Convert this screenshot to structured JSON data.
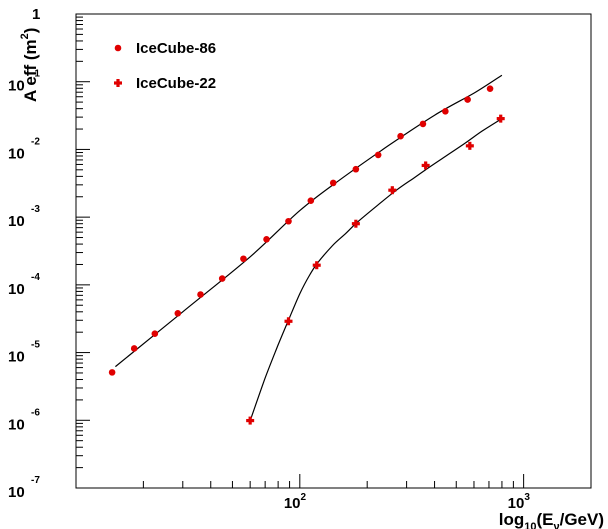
{
  "chart_data": {
    "type": "scatter",
    "title": "",
    "xlabel": "log10(Eν/GeV)",
    "xlabel_parts": {
      "prefix": "log",
      "sub1": "10",
      "mid": "(E",
      "sub2": "ν",
      "suffix": "/GeV)"
    },
    "ylabel": "A eff (m2)",
    "ylabel_parts": {
      "main": "A eff (m",
      "sup": "2",
      "close": ")"
    },
    "x_scale": "log",
    "y_scale": "log",
    "xlim": [
      10,
      2000
    ],
    "ylim": [
      1e-07,
      1
    ],
    "grid": false,
    "legend_position": "top-left",
    "x_ticks": [
      {
        "value": 100,
        "base": "10",
        "exp": "2"
      },
      {
        "value": 1000,
        "base": "10",
        "exp": "3"
      }
    ],
    "y_ticks": [
      {
        "value": 1,
        "base": "1",
        "exp": ""
      },
      {
        "value": 0.1,
        "base": "10",
        "exp": "-1"
      },
      {
        "value": 0.01,
        "base": "10",
        "exp": "-2"
      },
      {
        "value": 0.001,
        "base": "10",
        "exp": "-3"
      },
      {
        "value": 0.0001,
        "base": "10",
        "exp": "-4"
      },
      {
        "value": 1e-05,
        "base": "10",
        "exp": "-5"
      },
      {
        "value": 1e-06,
        "base": "10",
        "exp": "-6"
      },
      {
        "value": 1e-07,
        "base": "10",
        "exp": "-7"
      }
    ],
    "series": [
      {
        "name": "IceCube-86",
        "marker": "circle",
        "color": "#e00000",
        "points": [
          [
            14.5,
            5.1e-06
          ],
          [
            18.2,
            1.15e-05
          ],
          [
            22.5,
            1.9e-05
          ],
          [
            28.5,
            3.8e-05
          ],
          [
            36,
            7.2e-05
          ],
          [
            45,
            0.000124
          ],
          [
            56,
            0.000243
          ],
          [
            71,
            0.00047
          ],
          [
            89,
            0.00087
          ],
          [
            112,
            0.00175
          ],
          [
            141,
            0.0032
          ],
          [
            178,
            0.0051
          ],
          [
            224,
            0.0083
          ],
          [
            282,
            0.0157
          ],
          [
            355,
            0.0238
          ],
          [
            447,
            0.0365
          ],
          [
            562,
            0.0545
          ],
          [
            708,
            0.079
          ]
        ],
        "fit": [
          [
            15,
            6.2e-06
          ],
          [
            30,
            4e-05
          ],
          [
            60,
            0.00026
          ],
          [
            100,
            0.00125
          ],
          [
            150,
            0.0035
          ],
          [
            250,
            0.0115
          ],
          [
            400,
            0.032
          ],
          [
            600,
            0.068
          ],
          [
            800,
            0.125
          ]
        ]
      },
      {
        "name": "IceCube-22",
        "marker": "cross",
        "color": "#e00000",
        "points": [
          [
            60,
            9.9e-07
          ],
          [
            89,
            2.9e-05
          ],
          [
            119,
            0.000195
          ],
          [
            178,
            0.0008
          ],
          [
            259,
            0.0025
          ],
          [
            365,
            0.0058
          ],
          [
            575,
            0.0113
          ],
          [
            790,
            0.0285
          ]
        ],
        "fit": [
          [
            60,
            9.9e-07
          ],
          [
            70,
            4.2e-06
          ],
          [
            80,
            1.3e-05
          ],
          [
            90,
            3.3e-05
          ],
          [
            100,
            7.4e-05
          ],
          [
            110,
            0.000135
          ],
          [
            120,
            0.00021
          ],
          [
            140,
            0.00038
          ],
          [
            160,
            0.00057
          ],
          [
            180,
            0.00083
          ],
          [
            220,
            0.00145
          ],
          [
            270,
            0.0025
          ],
          [
            320,
            0.0037
          ],
          [
            380,
            0.0055
          ],
          [
            450,
            0.008
          ],
          [
            550,
            0.0125
          ],
          [
            650,
            0.0185
          ],
          [
            800,
            0.0285
          ]
        ]
      }
    ]
  }
}
